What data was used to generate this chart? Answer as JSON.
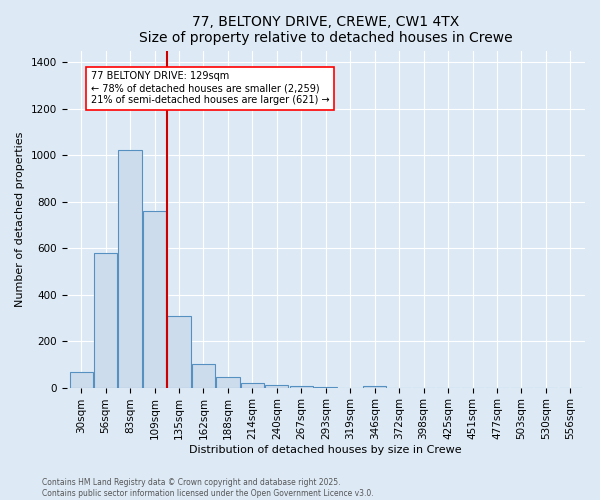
{
  "title_line1": "77, BELTONY DRIVE, CREWE, CW1 4TX",
  "title_line2": "Size of property relative to detached houses in Crewe",
  "xlabel": "Distribution of detached houses by size in Crewe",
  "ylabel": "Number of detached properties",
  "bar_color": "#ccdcec",
  "bar_edge_color": "#5590c0",
  "background_color": "#ddeaf6",
  "grid_color": "#ffffff",
  "categories": [
    "30sqm",
    "56sqm",
    "83sqm",
    "109sqm",
    "135sqm",
    "162sqm",
    "188sqm",
    "214sqm",
    "240sqm",
    "267sqm",
    "293sqm",
    "319sqm",
    "346sqm",
    "372sqm",
    "398sqm",
    "425sqm",
    "451sqm",
    "477sqm",
    "503sqm",
    "530sqm",
    "556sqm"
  ],
  "values": [
    65,
    580,
    1020,
    760,
    310,
    100,
    45,
    20,
    12,
    6,
    2,
    0,
    8,
    0,
    0,
    0,
    0,
    0,
    0,
    0,
    0
  ],
  "vline_index": 3.5,
  "vline_color": "#cc0000",
  "annotation_text": "77 BELTONY DRIVE: 129sqm\n← 78% of detached houses are smaller (2,259)\n21% of semi-detached houses are larger (621) →",
  "ylim": [
    0,
    1450
  ],
  "yticks": [
    0,
    200,
    400,
    600,
    800,
    1000,
    1200,
    1400
  ],
  "footer_line1": "Contains HM Land Registry data © Crown copyright and database right 2025.",
  "footer_line2": "Contains public sector information licensed under the Open Government Licence v3.0.",
  "title_fontsize": 10,
  "subtitle_fontsize": 9,
  "axis_label_fontsize": 8,
  "tick_fontsize": 7.5,
  "footer_fontsize": 5.5
}
